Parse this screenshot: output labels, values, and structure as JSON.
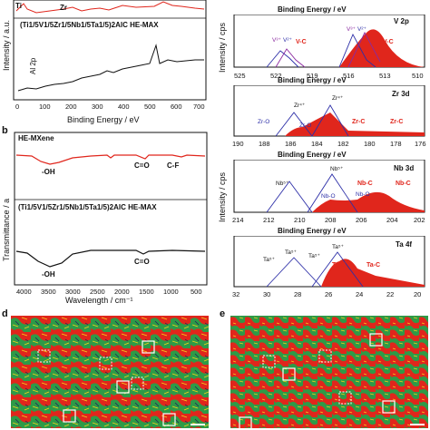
{
  "panel_a": {
    "top_label_ti": "Ti",
    "top_label_zr": "Zr",
    "compound_label": "(Ti1/5V1/5Zr1/5Nb1/5Ta1/5)2AlC HE-MAX",
    "al_label": "Al 2p",
    "xlabel": "Binding Energy / eV",
    "ylabel": "Intensity / a.u.",
    "x_ticks": [
      "0",
      "100",
      "200",
      "300",
      "400",
      "500",
      "600",
      "700"
    ]
  },
  "panel_b": {
    "letter": "b",
    "top_title": "HE-MXene",
    "top_annotations": [
      "-OH",
      "C=O",
      "C-F"
    ],
    "bottom_title": "(Ti1/5V1/5Zr1/5Nb1/5Ta1/5)2AlC HE-MAX",
    "bottom_annotations": [
      "-OH",
      "C=O"
    ],
    "ylabel": "Transmittance / a",
    "xlabel": "Wavelength / cm⁻¹",
    "x_ticks": [
      "4000",
      "3500",
      "3000",
      "2500",
      "2000",
      "1500",
      "1000",
      "500"
    ]
  },
  "panel_c": {
    "xlabel": "Binding Energy / eV",
    "ylabel": "Intensity / cps",
    "subpanels": [
      {
        "name": "V 2p",
        "species": [
          "V³⁺",
          "V²⁺",
          "V³⁺",
          "V²⁺",
          "V-C",
          "V-C"
        ],
        "x_ticks": [
          "525",
          "522",
          "519",
          "516",
          "513",
          "510"
        ]
      },
      {
        "name": "Zr 3d",
        "species": [
          "Zr⁴⁺",
          "Zr⁴⁺",
          "Zr-O",
          "Zr-O",
          "Zr-C",
          "Zr-C"
        ],
        "x_ticks": [
          "190",
          "188",
          "186",
          "184",
          "182",
          "180",
          "178",
          "176"
        ]
      },
      {
        "name": "Nb 3d",
        "species": [
          "Nb⁵⁺",
          "Nb⁵⁺",
          "Nb-O",
          "Nb-O",
          "Nb-C",
          "Nb-C"
        ],
        "x_ticks": [
          "214",
          "212",
          "210",
          "208",
          "206",
          "204",
          "202"
        ]
      },
      {
        "name": "Ta 4f",
        "species": [
          "Ta⁵⁺",
          "Ta⁵⁺",
          "Ta⁵⁺",
          "Ta⁵⁺",
          "Ta-C",
          "Ta-C"
        ],
        "x_ticks": [
          "32",
          "30",
          "28",
          "26",
          "24",
          "22",
          "20"
        ]
      }
    ]
  },
  "panel_d": {
    "letter": "d"
  },
  "panel_e": {
    "letter": "e"
  },
  "colors": {
    "red": "#e0261c",
    "green": "#2e9a47",
    "black": "#111111",
    "blue": "#2d2fa8",
    "purple": "#8b2aa0"
  }
}
